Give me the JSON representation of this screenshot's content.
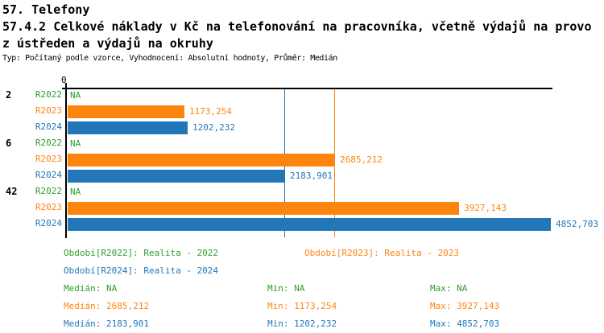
{
  "header": {
    "title": "57. Telefony",
    "subtitle_line1": "57.4.2 Celkové náklady v Kč na telefonování na pracovníka, včetně výdajů na provo",
    "subtitle_line2": "z ústředen a výdajů na okruhy",
    "meta": "Typ: Počítaný podle vzorce, Vyhodnocení: Absolutní hodnoty, Průměr: Medián"
  },
  "colors": {
    "r2022_green": "#2e9e2e",
    "r2023_orange": "#fd850e",
    "r2024_blue": "#2277b8",
    "axis_black": "#000000"
  },
  "chart_data": {
    "type": "bar",
    "orientation": "horizontal",
    "title": "57.4.2 Celkové náklady v Kč na telefonování na pracovníka, včetně výdajů na provoz ústředen a výdajů na okruhy",
    "axis_tick_label": "0",
    "xlim": [
      0,
      4852.703
    ],
    "grid": "median-lines-only",
    "categories": [
      "2",
      "6",
      "42"
    ],
    "series": [
      {
        "name": "R2022",
        "color": "#2e9e2e",
        "values": [
          null,
          null,
          null
        ],
        "value_labels": [
          "NA",
          "NA",
          "NA"
        ]
      },
      {
        "name": "R2023",
        "color": "#fd850e",
        "values": [
          1173.254,
          2685.212,
          3927.143
        ],
        "value_labels": [
          "1173,254",
          "2685,212",
          "3927,143"
        ]
      },
      {
        "name": "R2024",
        "color": "#2277b8",
        "values": [
          1202.232,
          2183.901,
          4852.703
        ],
        "value_labels": [
          "1202,232",
          "2183,901",
          "4852,703"
        ]
      }
    ],
    "median_lines": [
      {
        "series": "R2024",
        "value": 2183.901,
        "color": "#2277b8"
      },
      {
        "series": "R2023",
        "value": 2685.212,
        "color": "#fd850e"
      }
    ]
  },
  "legend": [
    {
      "label": "Období[R2022]: Realita - 2022",
      "color": "#2e9e2e"
    },
    {
      "label": "Období[R2023]: Realita - 2023",
      "color": "#fd850e"
    },
    {
      "label": "Období[R2024]: Realita - 2024",
      "color": "#2277b8"
    }
  ],
  "stats": [
    {
      "median": "Medián: NA",
      "min": "Min: NA",
      "max": "Max: NA",
      "color": "#2e9e2e"
    },
    {
      "median": "Medián: 2685,212",
      "min": "Min: 1173,254",
      "max": "Max: 3927,143",
      "color": "#fd850e"
    },
    {
      "median": "Medián: 2183,901",
      "min": "Min: 1202,232",
      "max": "Max: 4852,703",
      "color": "#2277b8"
    }
  ]
}
